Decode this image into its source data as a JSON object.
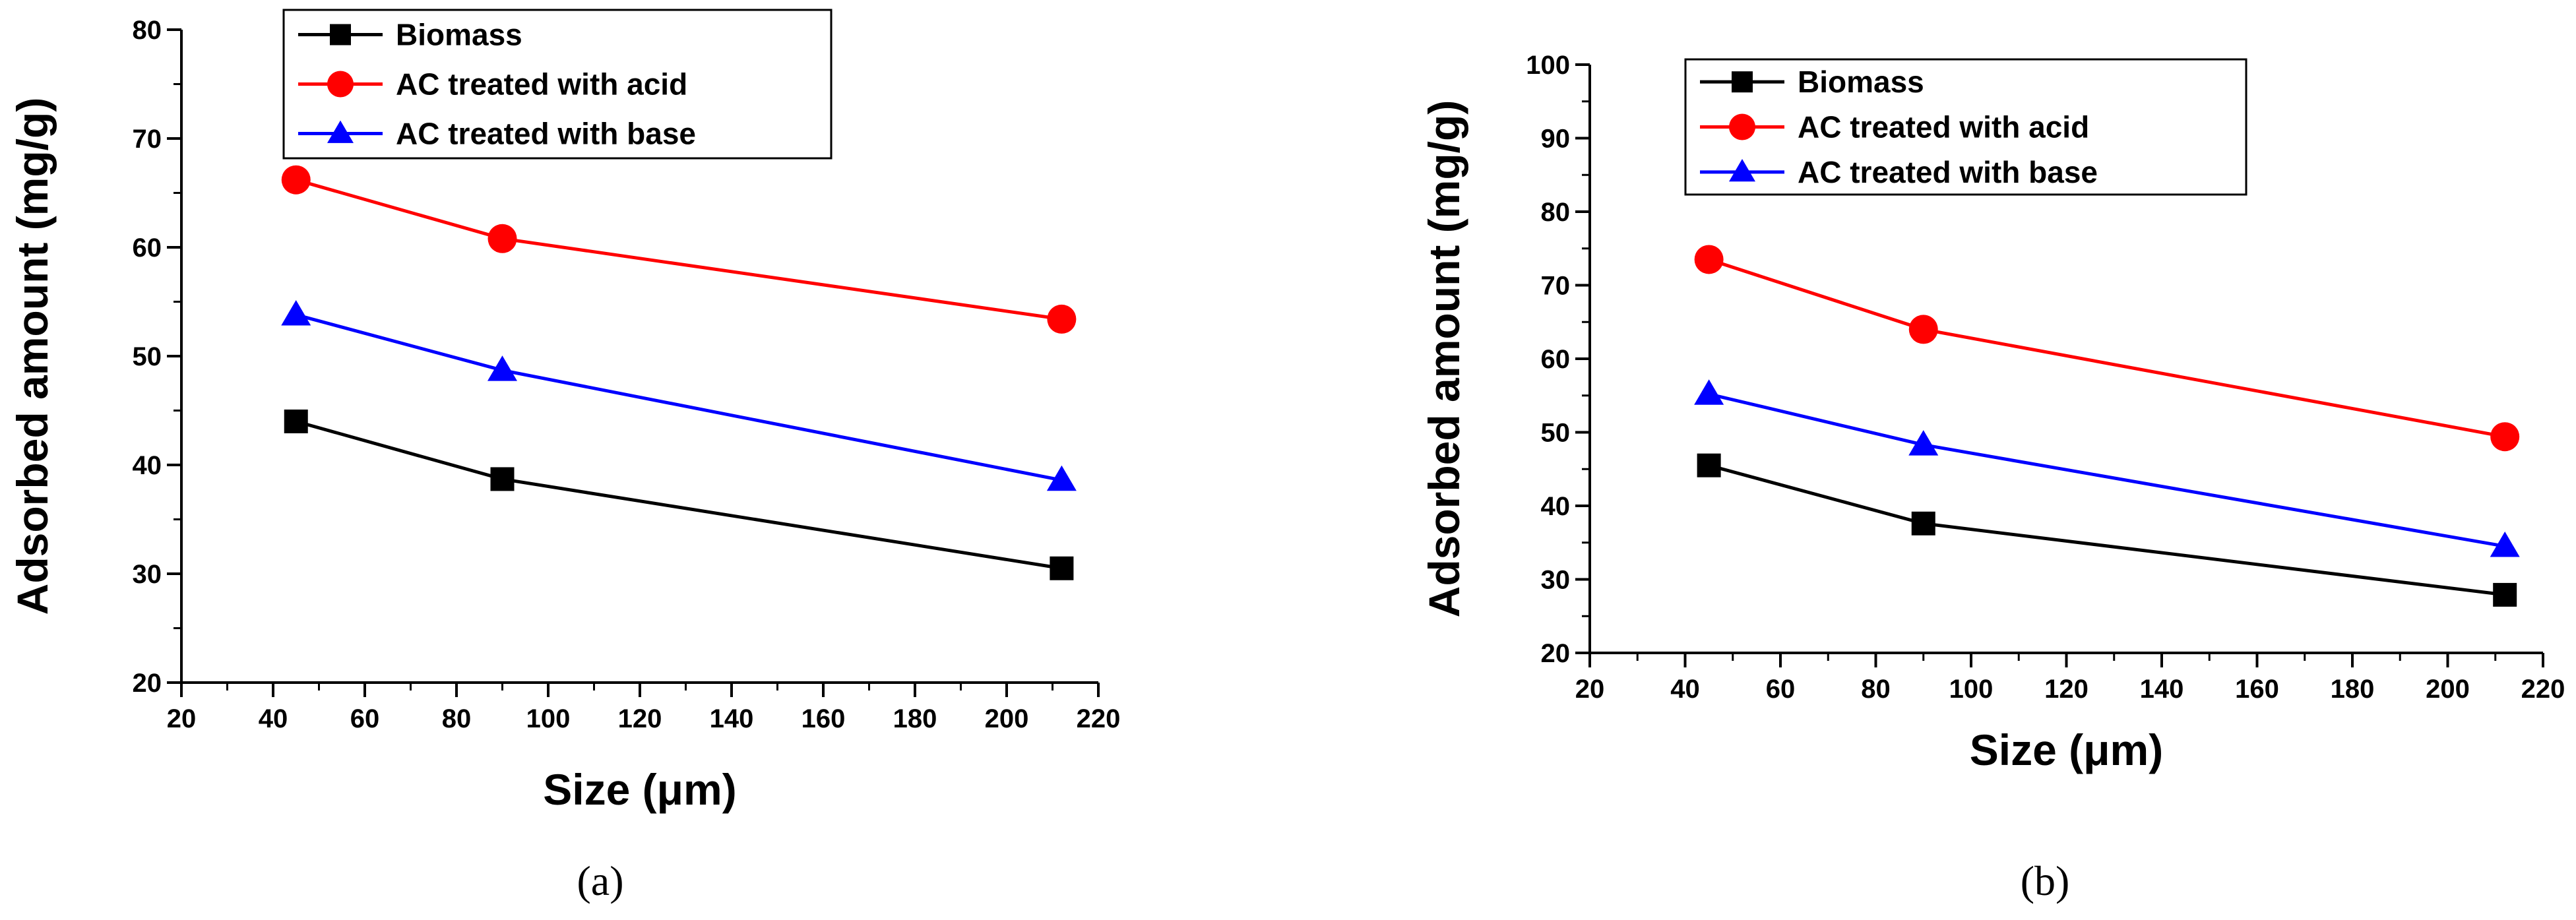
{
  "chart_data": [
    {
      "type": "line",
      "panel_label": "(a)",
      "xlabel": "Size (μm)",
      "ylabel": "Adsorbed amount (mg/g)",
      "xlim": [
        20,
        220
      ],
      "ylim": [
        20,
        80
      ],
      "xticks": [
        20,
        40,
        60,
        80,
        100,
        120,
        140,
        160,
        180,
        200,
        220
      ],
      "yticks": [
        20,
        30,
        40,
        50,
        60,
        70,
        80
      ],
      "grid": false,
      "legend_position": "top-left",
      "x": [
        45,
        90,
        212
      ],
      "series": [
        {
          "name": "Biomass",
          "color": "#000000",
          "marker": "square",
          "values": [
            44.0,
            38.7,
            30.5
          ]
        },
        {
          "name": "AC treated with acid",
          "color": "#ff0000",
          "marker": "circle",
          "values": [
            66.2,
            60.8,
            53.4
          ]
        },
        {
          "name": "AC treated with base",
          "color": "#0000ff",
          "marker": "triangle",
          "values": [
            53.8,
            48.7,
            38.6
          ]
        }
      ]
    },
    {
      "type": "line",
      "panel_label": "(b)",
      "xlabel": "Size (μm)",
      "ylabel": "Adsorbed amount (mg/g)",
      "xlim": [
        20,
        220
      ],
      "ylim": [
        20,
        100
      ],
      "xticks": [
        20,
        40,
        60,
        80,
        100,
        120,
        140,
        160,
        180,
        200,
        220
      ],
      "yticks": [
        20,
        30,
        40,
        50,
        60,
        70,
        80,
        90,
        100
      ],
      "grid": false,
      "legend_position": "top-left",
      "x": [
        45,
        90,
        212
      ],
      "series": [
        {
          "name": "Biomass",
          "color": "#000000",
          "marker": "square",
          "values": [
            45.5,
            37.6,
            27.9
          ]
        },
        {
          "name": "AC treated with acid",
          "color": "#ff0000",
          "marker": "circle",
          "values": [
            73.5,
            64.0,
            49.4
          ]
        },
        {
          "name": "AC treated with base",
          "color": "#0000ff",
          "marker": "triangle",
          "values": [
            55.2,
            48.3,
            34.5
          ]
        }
      ]
    }
  ]
}
